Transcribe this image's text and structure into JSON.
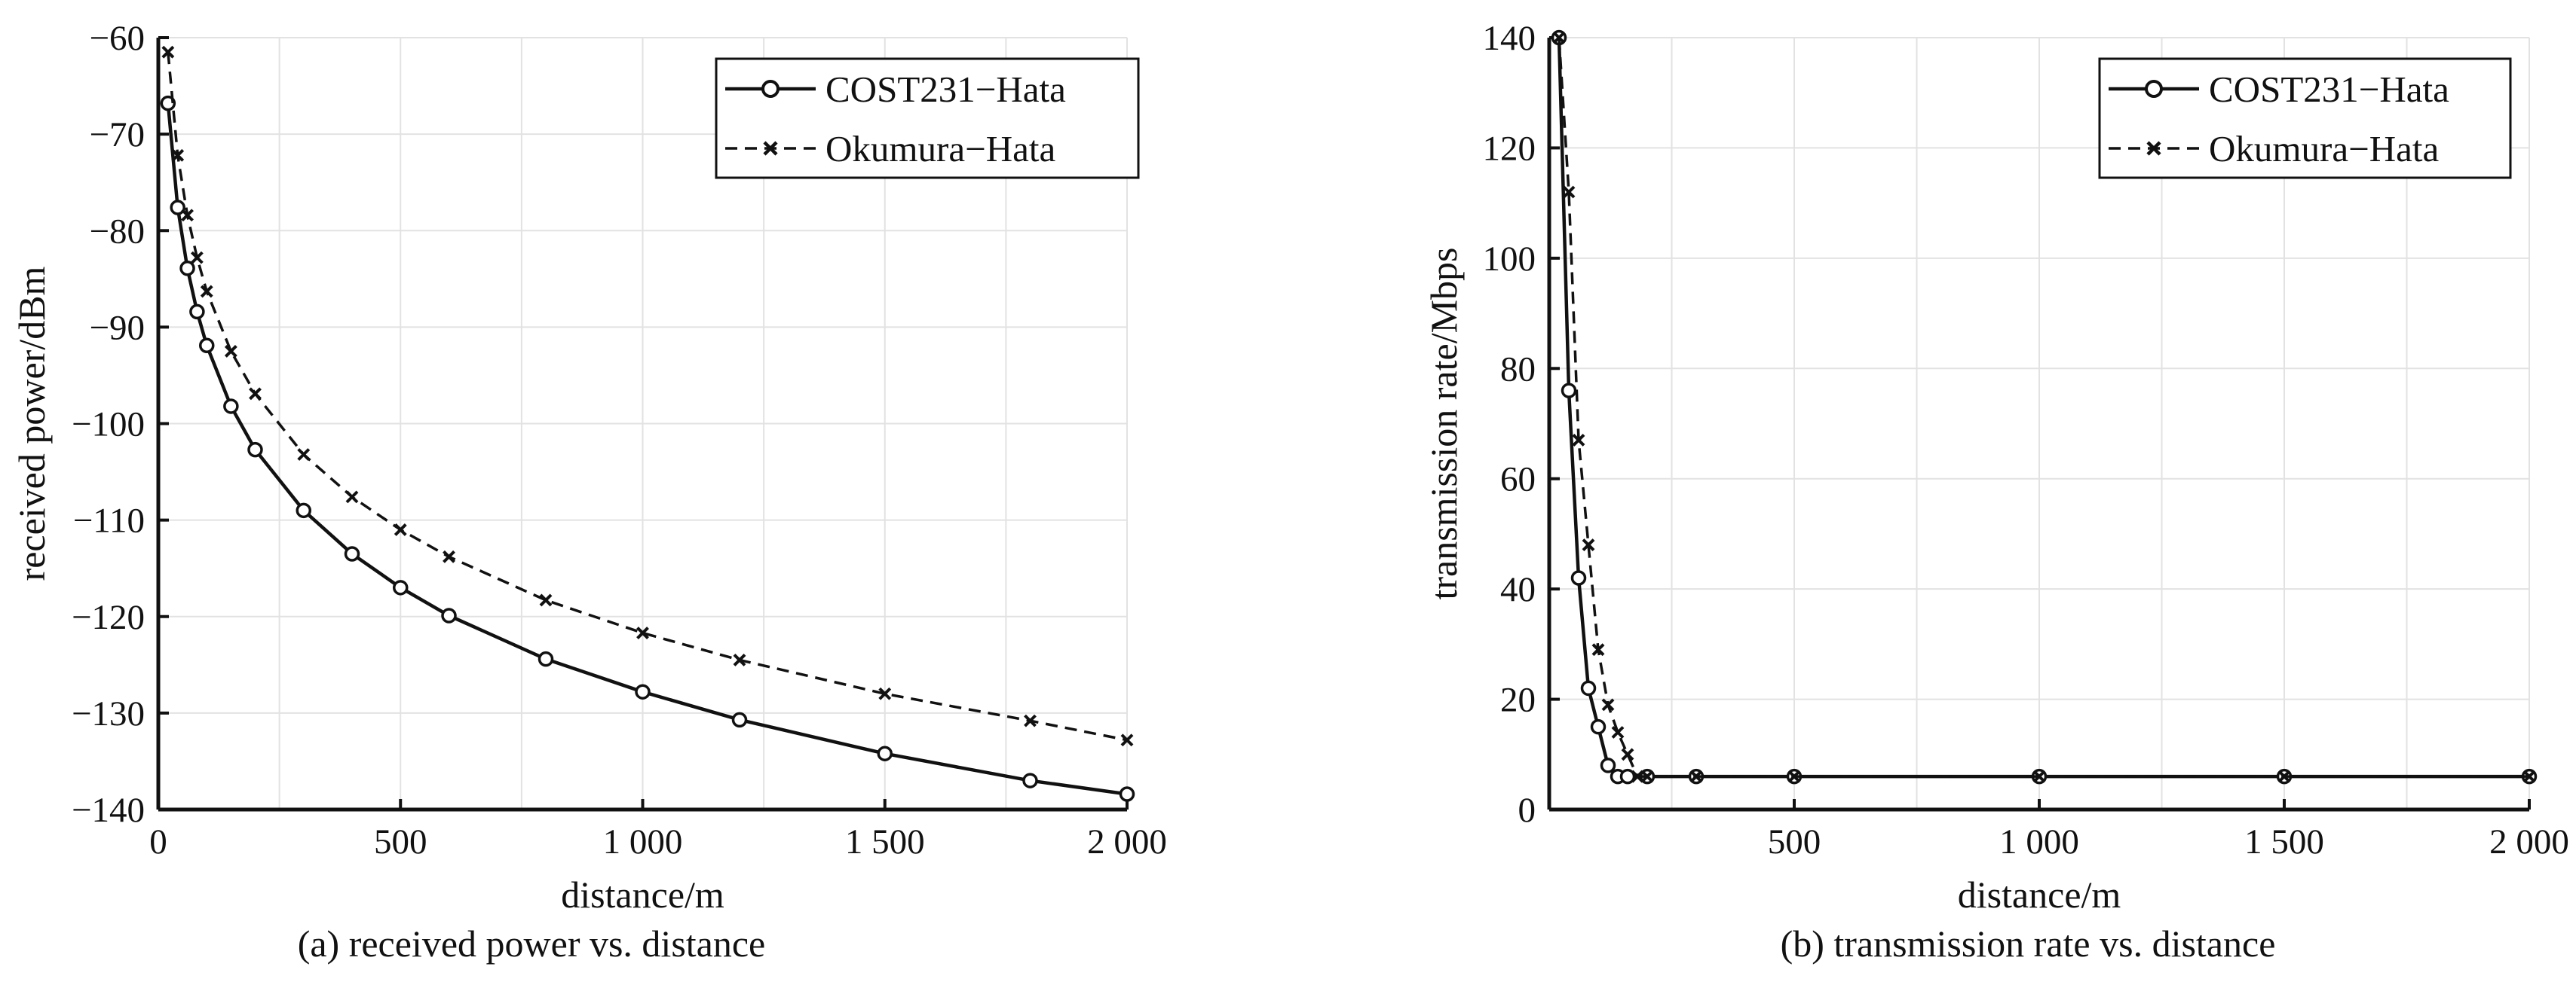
{
  "chart_data": [
    {
      "type": "line",
      "caption": "(a) received power vs. distance",
      "xlabel": "distance/m",
      "ylabel": "received power/dBm",
      "xlim": [
        0,
        2000
      ],
      "ylim": [
        -140,
        -60
      ],
      "xticks": [
        0,
        500,
        1000,
        1500,
        2000
      ],
      "xtick_labels": [
        "0",
        "500",
        "1 000",
        "1 500",
        "2 000"
      ],
      "yticks": [
        -60,
        -70,
        -80,
        -90,
        -100,
        -110,
        -120,
        -130,
        -140
      ],
      "ytick_labels": [
        "−60",
        "−70",
        "−80",
        "−90",
        "−100",
        "−110",
        "−120",
        "−130",
        "−140"
      ],
      "grid": true,
      "legend_position": "top-right",
      "series": [
        {
          "name": "COST231−Hata",
          "style": "solid",
          "marker": "circle",
          "x": [
            20,
            40,
            60,
            80,
            100,
            150,
            200,
            300,
            400,
            500,
            600,
            800,
            1000,
            1200,
            1500,
            1800,
            2000
          ],
          "y": [
            -66.8,
            -77.6,
            -83.9,
            -88.4,
            -91.9,
            -98.2,
            -102.7,
            -109.0,
            -113.5,
            -117.0,
            -119.9,
            -124.4,
            -127.8,
            -130.7,
            -134.2,
            -137.0,
            -138.4
          ]
        },
        {
          "name": "Okumura−Hata",
          "style": "dashed",
          "marker": "x",
          "x": [
            20,
            40,
            60,
            80,
            100,
            150,
            200,
            300,
            400,
            500,
            600,
            800,
            1000,
            1200,
            1500,
            1800,
            2000
          ],
          "y": [
            -61.5,
            -72.2,
            -78.4,
            -82.8,
            -86.3,
            -92.5,
            -96.9,
            -103.2,
            -107.6,
            -111.0,
            -113.8,
            -118.3,
            -121.7,
            -124.5,
            -128.0,
            -130.8,
            -132.8
          ]
        }
      ]
    },
    {
      "type": "line",
      "caption": "(b) transmission rate vs. distance",
      "xlabel": "distance/m",
      "ylabel": "transmission rate/Mbps",
      "xlim": [
        0,
        2000
      ],
      "ylim": [
        0,
        140
      ],
      "xticks": [
        500,
        1000,
        1500,
        2000
      ],
      "xtick_labels": [
        "500",
        "1 000",
        "1 500",
        "2 000"
      ],
      "yticks": [
        0,
        20,
        40,
        60,
        80,
        100,
        120,
        140
      ],
      "ytick_labels": [
        "0",
        "20",
        "40",
        "60",
        "80",
        "100",
        "120",
        "140"
      ],
      "grid": true,
      "legend_position": "top-right",
      "series": [
        {
          "name": "COST231−Hata",
          "style": "solid",
          "marker": "circle",
          "x": [
            20,
            40,
            60,
            80,
            100,
            120,
            140,
            160,
            200,
            300,
            500,
            1000,
            1500,
            2000
          ],
          "y": [
            140,
            76,
            42,
            22,
            15,
            8,
            6,
            6,
            6,
            6,
            6,
            6,
            6,
            6
          ]
        },
        {
          "name": "Okumura−Hata",
          "style": "dashed",
          "marker": "x",
          "x": [
            20,
            40,
            60,
            80,
            100,
            120,
            140,
            160,
            180,
            200,
            300,
            500,
            1000,
            1500,
            2000
          ],
          "y": [
            140,
            112,
            67,
            48,
            29,
            19,
            14,
            10,
            6,
            6,
            6,
            6,
            6,
            6,
            6
          ]
        }
      ]
    }
  ]
}
